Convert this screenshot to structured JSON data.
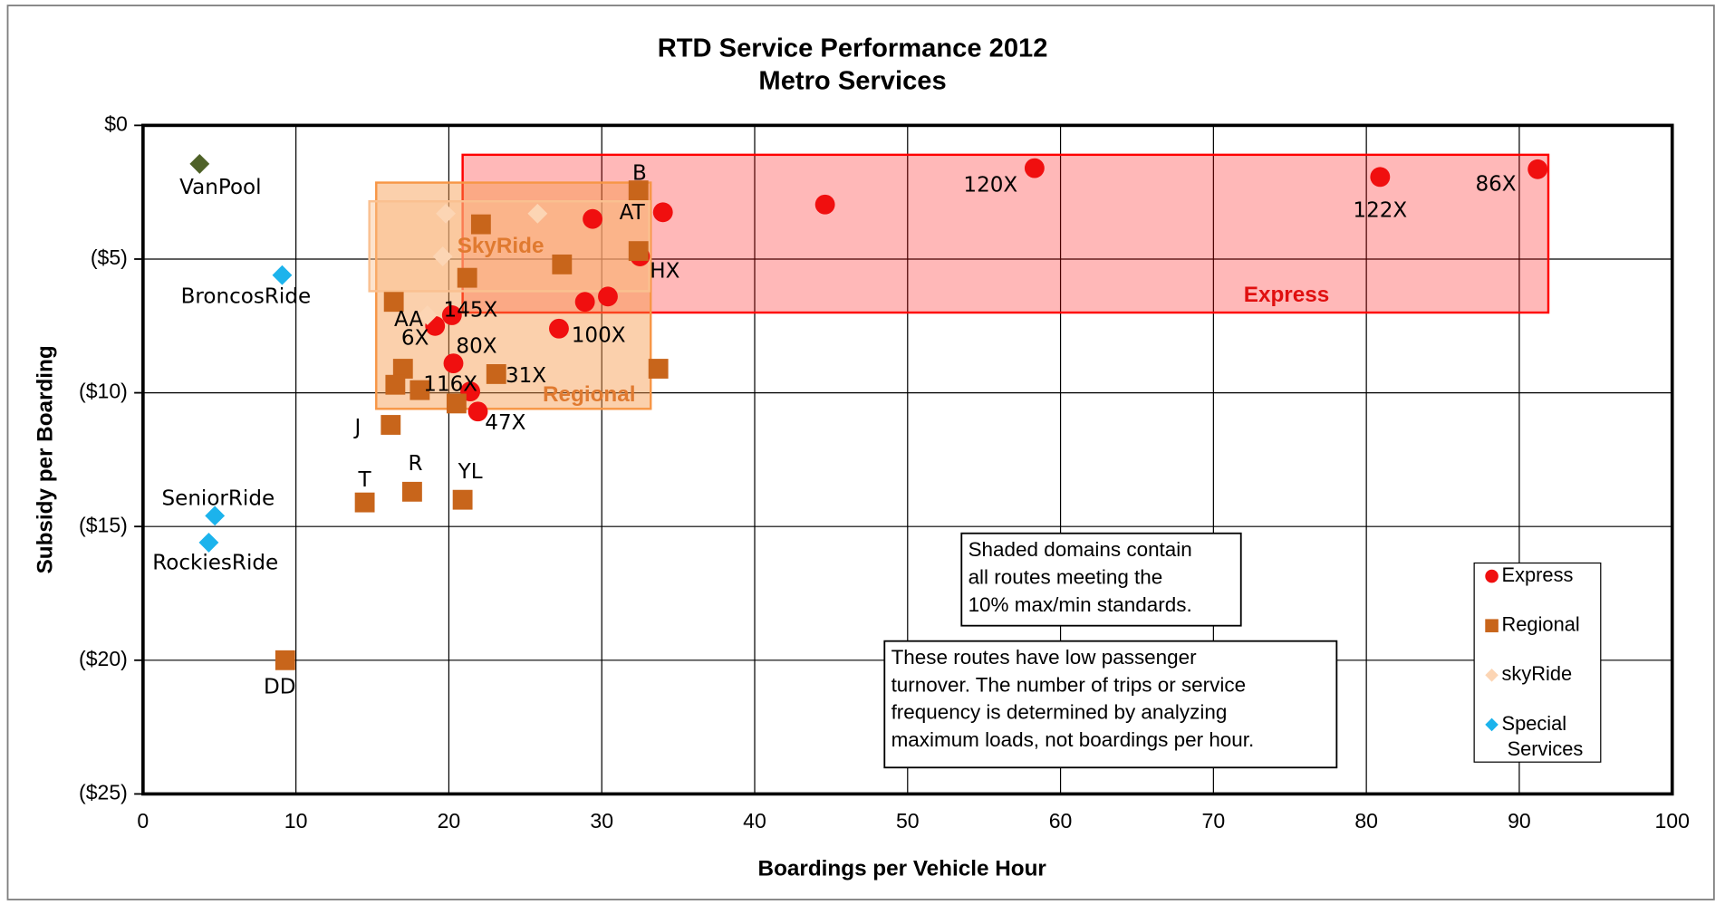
{
  "chart_data": {
    "type": "scatter",
    "title": "RTD Service Performance 2012",
    "subtitle": "Metro Services",
    "xlabel": "Boardings per Vehicle Hour",
    "ylabel": "Subsidy per Boarding",
    "xlim": [
      0,
      100
    ],
    "ylim": [
      -25,
      0
    ],
    "xticks": [
      0,
      10,
      20,
      30,
      40,
      50,
      60,
      70,
      80,
      90,
      100
    ],
    "yticks": [
      {
        "value": 0,
        "label": "$0"
      },
      {
        "value": -5,
        "label": "($5)"
      },
      {
        "value": -10,
        "label": "($10)"
      },
      {
        "value": -15,
        "label": "($15)"
      },
      {
        "value": -20,
        "label": "($20)"
      },
      {
        "value": -25,
        "label": "($25)"
      }
    ],
    "grid": true,
    "legend": "right",
    "series": [
      {
        "name": "Express",
        "color": "#f00f0f",
        "marker": "circle",
        "x": [
          58.3,
          80.9,
          91.2,
          44.6,
          34.0,
          29.4,
          32.5,
          30.4,
          28.9,
          27.2,
          20.2,
          19.1,
          20.3,
          21.4,
          21.9
        ],
        "values": [
          -1.6,
          -1.93,
          -1.64,
          -2.96,
          -3.25,
          -3.5,
          -4.9,
          -6.4,
          -6.6,
          -7.6,
          -7.1,
          -7.5,
          -8.9,
          -9.95,
          -10.7
        ],
        "labels": [
          "120X",
          "122X",
          "86X",
          null,
          "AT",
          null,
          null,
          null,
          null,
          "100X",
          "145X",
          "AA",
          "80X",
          "116X",
          "47X"
        ]
      },
      {
        "name": "Regional",
        "color": "#c8651b",
        "marker": "square",
        "x": [
          32.4,
          22.1,
          27.4,
          32.4,
          21.2,
          16.4,
          17.0,
          16.5,
          18.1,
          23.1,
          33.7,
          20.5,
          16.2,
          14.5,
          17.6,
          20.9,
          9.3
        ],
        "values": [
          -2.43,
          -3.7,
          -5.2,
          -4.7,
          -5.7,
          -6.6,
          -9.1,
          -9.7,
          -9.9,
          -9.3,
          -9.1,
          -10.4,
          -11.2,
          -14.1,
          -13.7,
          -14.0,
          -20.0
        ],
        "labels": [
          "B",
          null,
          null,
          "HX",
          null,
          null,
          "6X",
          null,
          null,
          "31X",
          null,
          null,
          "J",
          "T",
          "R",
          "YL",
          "DD"
        ]
      },
      {
        "name": "skyRide",
        "color": "#fcd5b4",
        "marker": "diamond",
        "x": [
          19.8,
          25.8,
          19.6,
          18.6
        ],
        "values": [
          -3.3,
          -3.3,
          -4.9,
          -7.1
        ],
        "labels": [
          null,
          null,
          null,
          null
        ]
      },
      {
        "name": "Special Services",
        "color": "#1cb3ec",
        "marker": "diamond",
        "x": [
          9.1,
          4.7,
          4.3,
          3.7
        ],
        "values": [
          -5.6,
          -14.6,
          -15.6,
          -1.44
        ],
        "labels": [
          "BroncosRide",
          "SeniorRide",
          "RockiesRide",
          "VanPool"
        ],
        "point_colors": [
          "#1cb3ec",
          "#1cb3ec",
          "#1cb3ec",
          "#4f6228"
        ]
      }
    ],
    "domains": [
      {
        "label": "Express",
        "color": "#ff0000",
        "xlim": [
          20.9,
          91.9
        ],
        "ylim": [
          -7.0,
          -1.1
        ]
      },
      {
        "label": "Regional",
        "color": "#f79646",
        "xlim": [
          15.25,
          33.2
        ],
        "ylim": [
          -10.6,
          -2.14
        ]
      },
      {
        "label": "SkyRide",
        "color": "#fac090",
        "xlim": [
          14.8,
          33.1
        ],
        "ylim": [
          -6.2,
          -2.84
        ]
      }
    ],
    "annotations": [
      {
        "lines": [
          "Shaded domains contain",
          "all routes meeting the",
          "10% max/min standards."
        ]
      },
      {
        "lines": [
          "These routes have low passenger",
          "turnover.  The number of trips or service",
          "frequency is determined by analyzing",
          "maximum  loads, not boardings per hour."
        ]
      }
    ]
  }
}
